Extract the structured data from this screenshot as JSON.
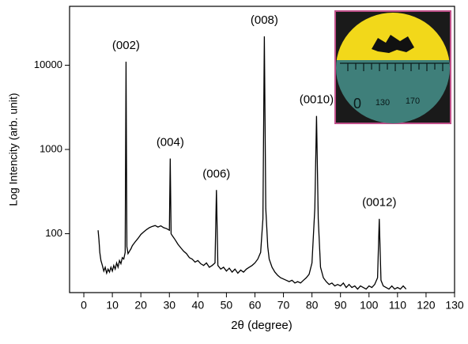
{
  "chart_data": {
    "type": "line",
    "y_label": "Log Intencity (arb. unit)",
    "x_label": "2θ (degree)",
    "log_y": true,
    "color": "#000000",
    "xlim": [
      -5,
      130
    ],
    "xticks": [
      0,
      10,
      20,
      30,
      40,
      50,
      60,
      70,
      80,
      90,
      100,
      110,
      120,
      130
    ],
    "ylim": [
      20,
      50000
    ],
    "yticks": [
      100,
      1000,
      10000
    ],
    "x": [
      5,
      5.3,
      5.6,
      6,
      6.5,
      7,
      7.5,
      8,
      8.5,
      9,
      9.5,
      10,
      10.5,
      11,
      11.5,
      12,
      12.5,
      13,
      13.5,
      14,
      14.5,
      14.8,
      15.1,
      15.5,
      16,
      16.5,
      17,
      17.5,
      18,
      19,
      20,
      21,
      22,
      23,
      24,
      25,
      26,
      27,
      28,
      29,
      30,
      30.3,
      30.6,
      31,
      32,
      33,
      34,
      35,
      36,
      37,
      38,
      39,
      40,
      41,
      42,
      43,
      44,
      45,
      46,
      46.5,
      47,
      48,
      49,
      50,
      51,
      52,
      53,
      54,
      55,
      56,
      57,
      58,
      59,
      60,
      61,
      62,
      62.8,
      63.3,
      63.8,
      64.5,
      65,
      66,
      67,
      68,
      69,
      70,
      71,
      72,
      73,
      74,
      75,
      76,
      77,
      78,
      79,
      80,
      81,
      81.6,
      82.2,
      83,
      84,
      85,
      86,
      87,
      88,
      89,
      90,
      91,
      92,
      93,
      94,
      95,
      96,
      97,
      98,
      99,
      100,
      101,
      102,
      103,
      103.6,
      104.2,
      105,
      106,
      107,
      108,
      109,
      110,
      111,
      112,
      113
    ],
    "values": [
      110,
      85,
      60,
      48,
      42,
      36,
      40,
      34,
      38,
      35,
      40,
      36,
      42,
      38,
      45,
      40,
      48,
      44,
      52,
      50,
      60,
      11000,
      70,
      58,
      62,
      66,
      72,
      76,
      80,
      88,
      98,
      105,
      112,
      118,
      122,
      125,
      120,
      124,
      118,
      115,
      110,
      780,
      100,
      95,
      85,
      75,
      68,
      62,
      58,
      52,
      50,
      46,
      48,
      44,
      42,
      45,
      40,
      42,
      45,
      330,
      42,
      38,
      40,
      36,
      39,
      35,
      38,
      34,
      37,
      35,
      38,
      40,
      42,
      45,
      50,
      60,
      150,
      22000,
      200,
      70,
      50,
      40,
      35,
      32,
      30,
      29,
      28,
      27,
      28,
      26,
      27,
      26,
      28,
      30,
      33,
      45,
      200,
      2500,
      150,
      40,
      30,
      27,
      25,
      26,
      24,
      25,
      24,
      26,
      23,
      25,
      23,
      24,
      22,
      24,
      23,
      22,
      24,
      23,
      25,
      30,
      150,
      28,
      24,
      23,
      22,
      24,
      22,
      23,
      22,
      24,
      22
    ],
    "annotations": [
      {
        "text": "(002)",
        "x": 14.8
      },
      {
        "text": "(004)",
        "x": 30.3
      },
      {
        "text": "(006)",
        "x": 46.5
      },
      {
        "text": "(008)",
        "x": 63.3
      },
      {
        "text": "(0010)",
        "x": 81.6
      },
      {
        "text": "(0012)",
        "x": 103.6
      }
    ],
    "inset_labels": [
      "0",
      "130",
      "170"
    ]
  }
}
